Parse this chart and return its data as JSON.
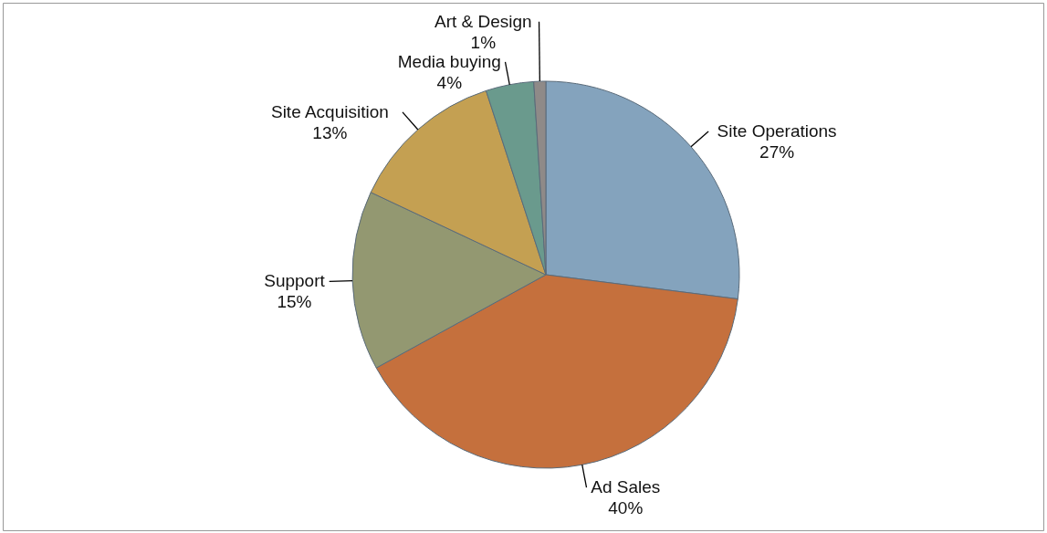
{
  "chart_data": {
    "type": "pie",
    "categories": [
      "Site Operations",
      "Ad Sales",
      "Support",
      "Site Acquisition",
      "Media buying",
      "Art & Design"
    ],
    "values": [
      27,
      40,
      15,
      13,
      4,
      1
    ],
    "value_labels": [
      "27%",
      "40%",
      "15%",
      "13%",
      "4%",
      "1%"
    ],
    "colors": [
      "#84a3bd",
      "#c5703d",
      "#939871",
      "#c4a052",
      "#6a9a8d",
      "#8f8a88"
    ],
    "legend": false
  }
}
